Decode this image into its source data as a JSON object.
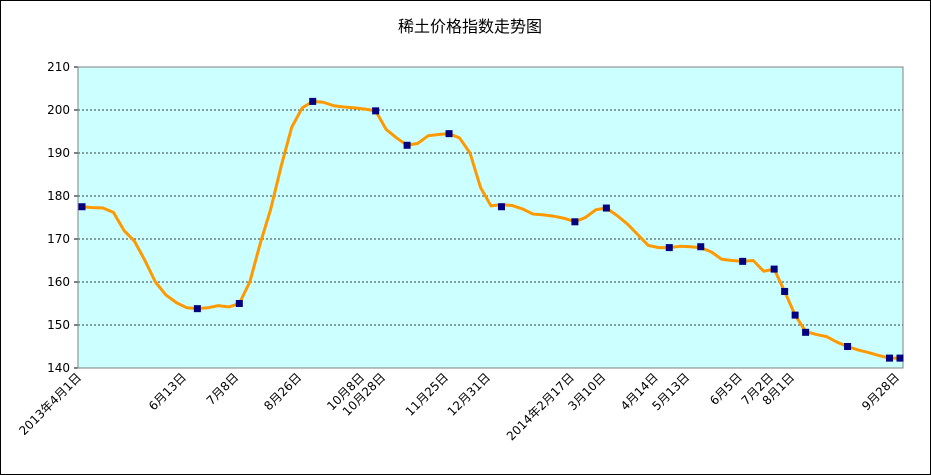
{
  "chart_data": {
    "type": "line",
    "title": "稀土价格指数走势图",
    "categories": [
      "2013年4月1日",
      null,
      null,
      null,
      null,
      null,
      null,
      null,
      null,
      null,
      "6月13日",
      null,
      null,
      null,
      null,
      "7月8日",
      null,
      null,
      null,
      null,
      null,
      "8月26日",
      null,
      null,
      null,
      null,
      null,
      "10月8日",
      null,
      "10月28日",
      null,
      null,
      null,
      null,
      null,
      "11月25日",
      null,
      null,
      null,
      "12月31日",
      null,
      null,
      null,
      null,
      null,
      null,
      null,
      "2014年2月17日",
      null,
      null,
      "3月10日",
      null,
      null,
      null,
      null,
      "4月14日",
      null,
      null,
      "5月13日",
      null,
      null,
      null,
      null,
      "6月5日",
      null,
      null,
      "7月2日",
      null,
      "8月1日",
      null,
      null,
      null,
      null,
      null,
      null,
      null,
      null,
      null,
      "9月28日"
    ],
    "series": [
      {
        "color": "#ff9900",
        "values": [
          177.5,
          177.3,
          177.2,
          176.2,
          172,
          169.5,
          165,
          160,
          157,
          155.2,
          154,
          153.8,
          154,
          154.5,
          154.2,
          155,
          160,
          169,
          177,
          187,
          196,
          200.5,
          202,
          201.8,
          201,
          200.7,
          200.5,
          200.2,
          199.8,
          195.5,
          193.5,
          191.8,
          192.2,
          194,
          194.3,
          194.5,
          193.5,
          190,
          182,
          177.7,
          178,
          177.8,
          177,
          175.8,
          175.6,
          175.3,
          174.8,
          174,
          175,
          176.8,
          177.2,
          175.5,
          173.5,
          171,
          168.5,
          168,
          168,
          168.3,
          168.2,
          168,
          167,
          165.3,
          165,
          164.8,
          165,
          162.5,
          163,
          157.8,
          152.3,
          148.5,
          147.8,
          147.3,
          146,
          145,
          144.2,
          143.6,
          142.9,
          142.3,
          142.3
        ]
      },
      {
        "color": "#000080",
        "values": [
          177.5,
          null,
          null,
          null,
          null,
          null,
          null,
          null,
          null,
          null,
          null,
          153.8,
          null,
          null,
          null,
          155,
          null,
          null,
          null,
          null,
          null,
          null,
          202,
          null,
          null,
          null,
          null,
          null,
          199.8,
          null,
          null,
          191.8,
          null,
          null,
          null,
          194.5,
          null,
          null,
          null,
          null,
          177.5,
          null,
          null,
          null,
          null,
          null,
          null,
          174,
          null,
          null,
          177.2,
          null,
          null,
          null,
          null,
          null,
          168,
          null,
          null,
          168.2,
          null,
          null,
          null,
          164.8,
          null,
          null,
          163,
          157.8,
          152.3,
          148.3,
          null,
          null,
          null,
          145,
          null,
          null,
          null,
          142.3,
          142.3
        ]
      }
    ],
    "ylim": [
      140,
      210
    ],
    "yticks": [
      140,
      150,
      160,
      170,
      180,
      190,
      200,
      210
    ],
    "grid": true,
    "plot_color": "#ccffff"
  }
}
